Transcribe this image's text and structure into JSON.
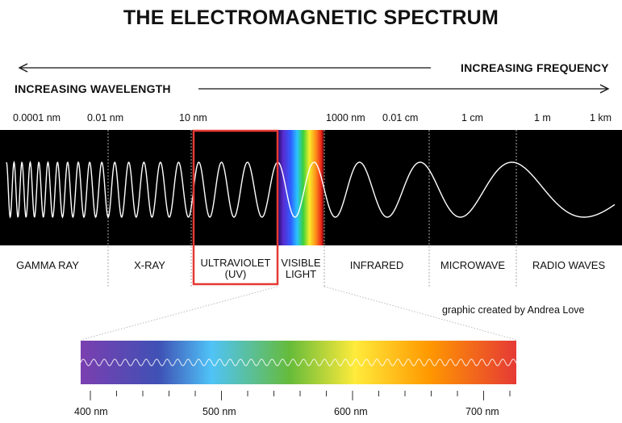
{
  "title": "THE ELECTROMAGNETIC SPECTRUM",
  "frequency_label": "INCREASING FREQUENCY",
  "wavelength_label": "INCREASING WAVELENGTH",
  "wavelength_ticks": [
    "0.0001 nm",
    "0.01 nm",
    "10 nm",
    "1000 nm",
    "0.01 cm",
    "1 cm",
    "1 m",
    "1 km"
  ],
  "regions": [
    {
      "name": "GAMMA RAY"
    },
    {
      "name": "X-RAY"
    },
    {
      "name": "ULTRAVIOLET\n(UV)"
    },
    {
      "name": "VISIBLE\nLIGHT"
    },
    {
      "name": "INFRARED"
    },
    {
      "name": "MICROWAVE"
    },
    {
      "name": "RADIO WAVES"
    }
  ],
  "highlight_color": "#e53935",
  "credit": "graphic created by Andrea Love",
  "visible_scale": {
    "labels": [
      "400 nm",
      "500 nm",
      "600 nm",
      "700 nm"
    ],
    "colors": [
      "#7b3fb0",
      "#3f51b5",
      "#4fc3f7",
      "#66bb3a",
      "#ffeb3b",
      "#ff9800",
      "#e53935"
    ]
  }
}
